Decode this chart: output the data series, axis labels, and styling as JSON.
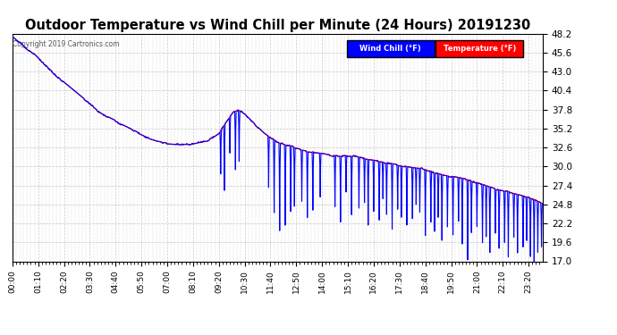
{
  "title": "Outdoor Temperature vs Wind Chill per Minute (24 Hours) 20191230",
  "copyright_text": "Copyright 2019 Cartronics.com",
  "ylim": [
    17.0,
    48.2
  ],
  "yticks": [
    17.0,
    19.6,
    22.2,
    24.8,
    27.4,
    30.0,
    32.6,
    35.2,
    37.8,
    40.4,
    43.0,
    45.6,
    48.2
  ],
  "legend_wind_chill": "Wind Chill (°F)",
  "legend_temperature": "Temperature (°F)",
  "wind_chill_color": "#0000ff",
  "temperature_color": "#ff0000",
  "wind_chill_legend_bg": "#0000ff",
  "temperature_legend_bg": "#ff0000",
  "grid_color": "#c0c0c0",
  "background_color": "#ffffff",
  "title_fontsize": 10.5,
  "n_minutes": 1440,
  "tick_interval": 70,
  "copyright_color": "#555555"
}
